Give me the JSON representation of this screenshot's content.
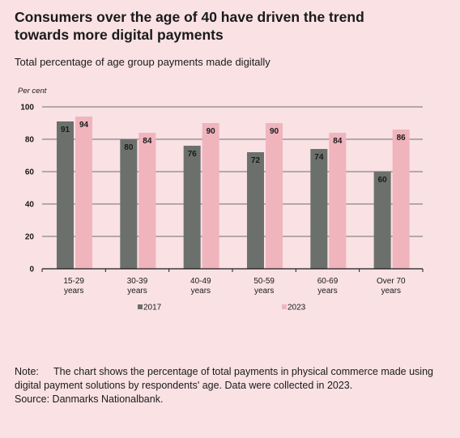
{
  "title": "Consumers over the age of 40 have driven the trend towards more digital payments",
  "subtitle": "Total percentage of age group payments made digitally",
  "note": {
    "label": "Note:",
    "text": "The chart shows the percentage of total payments in physical commerce made using digital payment solutions by respondents' age. Data were collected in 2023.",
    "source": "Source: Danmarks Nationalbank."
  },
  "chart_data": {
    "type": "bar",
    "unit_label": "Per cent",
    "categories": [
      "15-29 years",
      "30-39 years",
      "40-49 years",
      "50-59 years",
      "60-69 years",
      "Over 70 years"
    ],
    "category_lines": [
      [
        "15-29",
        "years"
      ],
      [
        "30-39",
        "years"
      ],
      [
        "40-49",
        "years"
      ],
      [
        "50-59",
        "years"
      ],
      [
        "60-69",
        "years"
      ],
      [
        "Over 70",
        "years"
      ]
    ],
    "series": [
      {
        "name": "2017",
        "color": "#6c706c",
        "values": [
          91,
          80,
          76,
          72,
          74,
          60
        ]
      },
      {
        "name": "2023",
        "color": "#f0b4bd",
        "values": [
          94,
          84,
          90,
          90,
          84,
          86
        ]
      }
    ],
    "ylim": [
      0,
      100
    ],
    "yticks": [
      0,
      20,
      40,
      60,
      80,
      100
    ],
    "grid": true,
    "legend": "bottom",
    "data_labels": true
  }
}
